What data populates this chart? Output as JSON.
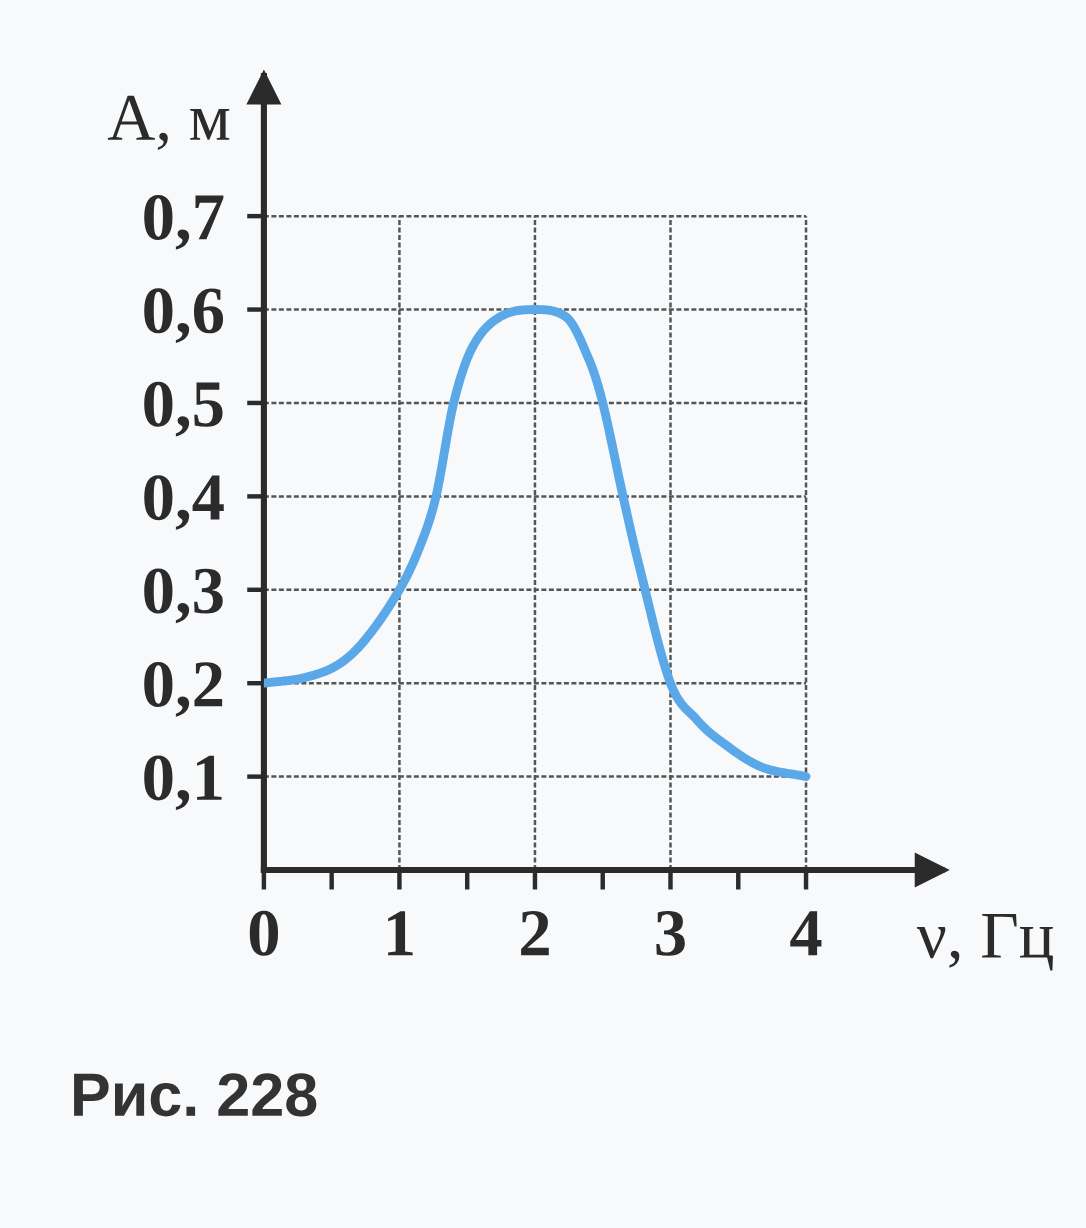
{
  "chart_data": {
    "type": "line",
    "xlabel": "ν, Гц",
    "ylabel": "A, м",
    "annotations": [
      "Рис. 228"
    ],
    "x": [
      0,
      0.3,
      0.55,
      0.75,
      1.0,
      1.15,
      1.27,
      1.4,
      1.54,
      1.74,
      2.0,
      2.23,
      2.4,
      2.5,
      2.65,
      2.77,
      3.0,
      3.2,
      3.36,
      3.66,
      4.0
    ],
    "series": [
      {
        "color": "#5aa8e8",
        "values": [
          0.2,
          0.206,
          0.22,
          0.247,
          0.3,
          0.346,
          0.4,
          0.5,
          0.56,
          0.592,
          0.6,
          0.592,
          0.546,
          0.5,
          0.4,
          0.325,
          0.2,
          0.16,
          0.139,
          0.111,
          0.1
        ]
      }
    ],
    "xlim": [
      0,
      5
    ],
    "ylim": [
      0,
      0.85
    ],
    "xticks": [
      {
        "value": 0,
        "label": "0"
      },
      {
        "value": 0.5,
        "label": null
      },
      1,
      {
        "value": 1.5,
        "label": null
      },
      2,
      {
        "value": 2.5,
        "label": null
      },
      3,
      {
        "value": 3.5,
        "label": null
      },
      4
    ],
    "yticks": [
      {
        "value": 0.1,
        "label": "0,1"
      },
      {
        "value": 0.2,
        "label": "0,2"
      },
      {
        "value": 0.3,
        "label": "0,3"
      },
      {
        "value": 0.4,
        "label": "0,4"
      },
      {
        "value": 0.5,
        "label": "0,5"
      },
      {
        "value": 0.6,
        "label": "0,6"
      },
      {
        "value": 0.7,
        "label": "0,7"
      }
    ],
    "grid": true,
    "line_style": "solid"
  }
}
